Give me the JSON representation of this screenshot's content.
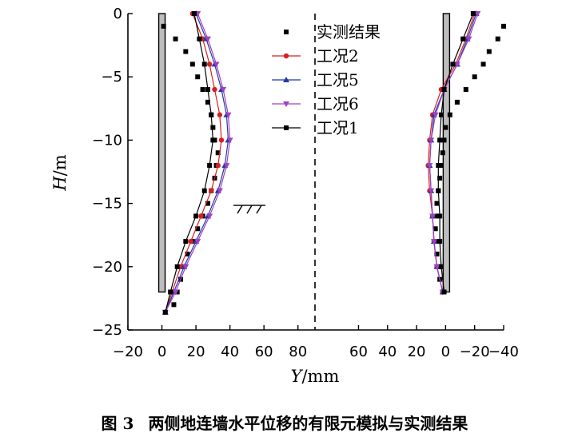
{
  "figure": {
    "caption_number": "图 3",
    "caption_text": "两侧地连墙水平位移的有限元模拟与实测结果"
  },
  "chart_data": {
    "type": "scatter",
    "title": "",
    "xlabel_italic": "Y",
    "xlabel_unit": "/mm",
    "ylabel_italic": "H",
    "ylabel_unit": "/m",
    "ylim": [
      -25,
      0
    ],
    "y_ticks": [
      0,
      -5,
      -10,
      -15,
      -20,
      -25
    ],
    "y_tick_labels": [
      "0",
      "−5",
      "−10",
      "−15",
      "−20",
      "−25"
    ],
    "x_tick_labels": [
      "−20",
      "0",
      "20",
      "40",
      "60",
      "80",
      "60",
      "40",
      "20",
      "0",
      "−20",
      "−40"
    ],
    "left_panel_xlim": [
      -20,
      90
    ],
    "right_panel_xlim": [
      90,
      -40
    ],
    "left_x_ticks": [
      -20,
      0,
      20,
      40,
      60,
      80
    ],
    "right_x_ticks": [
      60,
      40,
      20,
      0,
      -20,
      -40
    ],
    "panel_divider": "dashed vertical line at Y = 90",
    "ground_symbol_depth": -15.6,
    "left_wall": {
      "y_top": 0,
      "y_bottom": -22
    },
    "right_wall": {
      "y_top": 0,
      "y_bottom": -22
    },
    "legend": {
      "placement": "top-center",
      "entries": [
        "实测结果",
        "工况2",
        "工况5",
        "工况6",
        "工况1"
      ]
    },
    "series": [
      {
        "name": "实测结果",
        "marker": "square",
        "line": false,
        "color": "#000000",
        "left": [
          [
            1,
            -1
          ],
          [
            8,
            -2
          ],
          [
            14,
            -3
          ],
          [
            18,
            -4
          ],
          [
            21,
            -5
          ],
          [
            24,
            -6
          ],
          [
            27,
            -7
          ],
          [
            29,
            -8
          ],
          [
            30,
            -9
          ],
          [
            31,
            -10
          ],
          [
            33,
            -11
          ],
          [
            32,
            -12
          ],
          [
            31,
            -13
          ],
          [
            29,
            -14
          ],
          [
            27,
            -15
          ],
          [
            24,
            -16
          ],
          [
            21,
            -17
          ],
          [
            18,
            -18
          ],
          [
            15,
            -19
          ],
          [
            13,
            -20
          ],
          [
            11,
            -21
          ],
          [
            9,
            -22
          ],
          [
            7,
            -23
          ]
        ],
        "right": [
          [
            -40,
            -1
          ],
          [
            -36,
            -2
          ],
          [
            -30,
            -3
          ],
          [
            -26,
            -4
          ],
          [
            -20,
            -5
          ],
          [
            -14,
            -6
          ],
          [
            -8,
            -7
          ],
          [
            -3,
            -8
          ],
          [
            0,
            -9
          ],
          [
            1,
            -10
          ],
          [
            2,
            -11
          ],
          [
            3,
            -12
          ],
          [
            4,
            -13
          ],
          [
            5,
            -14
          ],
          [
            6,
            -15
          ],
          [
            7,
            -16
          ],
          [
            7,
            -17
          ],
          [
            7,
            -18
          ],
          [
            6,
            -19
          ],
          [
            5,
            -20
          ],
          [
            4,
            -21
          ],
          [
            2,
            -22
          ]
        ]
      },
      {
        "name": "工况2",
        "marker": "circle",
        "line": true,
        "color": "#d62020",
        "left": [
          [
            18,
            0
          ],
          [
            24,
            -2
          ],
          [
            28,
            -4
          ],
          [
            31,
            -6
          ],
          [
            34,
            -8
          ],
          [
            35,
            -10
          ],
          [
            33,
            -12
          ],
          [
            29,
            -14
          ],
          [
            23,
            -16
          ],
          [
            17,
            -18
          ],
          [
            11,
            -20
          ],
          [
            6,
            -22
          ],
          [
            2,
            -23.6
          ]
        ],
        "right": [
          [
            -20,
            0
          ],
          [
            -14,
            -2
          ],
          [
            -7,
            -4
          ],
          [
            3,
            -6
          ],
          [
            9,
            -8
          ],
          [
            11,
            -10
          ],
          [
            12,
            -12
          ],
          [
            11,
            -14
          ],
          [
            9,
            -16
          ],
          [
            8,
            -18
          ],
          [
            6,
            -20
          ],
          [
            2,
            -22
          ]
        ]
      },
      {
        "name": "工况5",
        "marker": "triangle",
        "line": true,
        "color": "#1f3aa8",
        "left": [
          [
            20,
            0
          ],
          [
            26,
            -2
          ],
          [
            31,
            -4
          ],
          [
            35,
            -6
          ],
          [
            38,
            -8
          ],
          [
            39,
            -10
          ],
          [
            37,
            -12
          ],
          [
            33,
            -14
          ],
          [
            27,
            -16
          ],
          [
            20,
            -18
          ],
          [
            13,
            -20
          ],
          [
            7,
            -22
          ],
          [
            2,
            -23.6
          ]
        ],
        "right": [
          [
            -21,
            0
          ],
          [
            -15,
            -2
          ],
          [
            -8,
            -4
          ],
          [
            1,
            -6
          ],
          [
            8,
            -8
          ],
          [
            10,
            -10
          ],
          [
            11,
            -12
          ],
          [
            10,
            -14
          ],
          [
            9,
            -16
          ],
          [
            8,
            -18
          ],
          [
            6,
            -20
          ],
          [
            2,
            -22
          ]
        ]
      },
      {
        "name": "工况6",
        "marker": "triangle-down",
        "line": true,
        "color": "#a040c0",
        "left": [
          [
            21,
            0
          ],
          [
            27,
            -2
          ],
          [
            32,
            -4
          ],
          [
            36,
            -6
          ],
          [
            39,
            -8
          ],
          [
            40,
            -10
          ],
          [
            38,
            -12
          ],
          [
            34,
            -14
          ],
          [
            28,
            -16
          ],
          [
            21,
            -18
          ],
          [
            14,
            -20
          ],
          [
            8,
            -22
          ],
          [
            2,
            -23.6
          ]
        ],
        "right": [
          [
            -22,
            0
          ],
          [
            -16,
            -2
          ],
          [
            -8,
            -4
          ],
          [
            1,
            -6
          ],
          [
            7,
            -8
          ],
          [
            10,
            -10
          ],
          [
            11,
            -12
          ],
          [
            10,
            -14
          ],
          [
            9,
            -16
          ],
          [
            8,
            -18
          ],
          [
            6,
            -20
          ],
          [
            2,
            -22
          ]
        ]
      },
      {
        "name": "工况1",
        "marker": "square",
        "line": true,
        "color": "#000000",
        "left": [
          [
            19,
            0
          ],
          [
            22,
            -2
          ],
          [
            25,
            -4
          ],
          [
            27,
            -6
          ],
          [
            29,
            -8
          ],
          [
            30,
            -10
          ],
          [
            28,
            -12
          ],
          [
            25,
            -14
          ],
          [
            20,
            -16
          ],
          [
            14,
            -18
          ],
          [
            9,
            -20
          ],
          [
            5,
            -22
          ],
          [
            2,
            -23.6
          ]
        ],
        "right": [
          [
            -19,
            0
          ],
          [
            -12,
            -2
          ],
          [
            -5,
            -4
          ],
          [
            1,
            -6
          ],
          [
            3,
            -8
          ],
          [
            4,
            -10
          ],
          [
            5,
            -12
          ],
          [
            5,
            -14
          ],
          [
            4,
            -16
          ],
          [
            4,
            -18
          ],
          [
            3,
            -20
          ],
          [
            1,
            -22
          ]
        ]
      }
    ]
  }
}
